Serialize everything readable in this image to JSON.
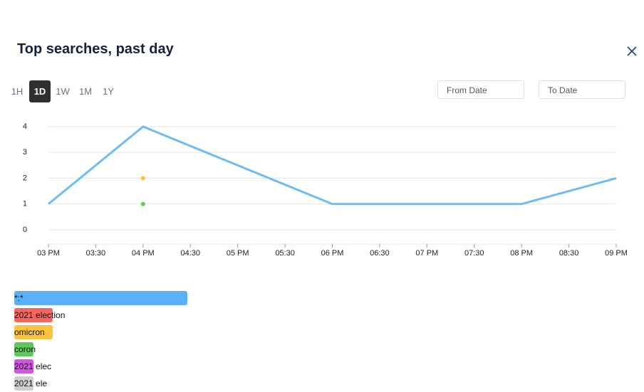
{
  "header": {
    "title": "Top searches, past day"
  },
  "range_buttons": {
    "options": [
      "1H",
      "1D",
      "1W",
      "1M",
      "1Y"
    ],
    "active": "1D"
  },
  "date_inputs": {
    "from": "From Date",
    "to": "To Date"
  },
  "chart_data": [
    {
      "type": "line",
      "xticks": [
        "03 PM",
        "03:30",
        "04 PM",
        "04:30",
        "05 PM",
        "05:30",
        "06 PM",
        "06:30",
        "07 PM",
        "07:30",
        "08 PM",
        "08:30",
        "09 PM"
      ],
      "ylim": [
        0,
        4
      ],
      "yticks": [
        0,
        1,
        2,
        3,
        4
      ],
      "grid": true,
      "series": [
        {
          "color": "#6bbcf7",
          "style": "line",
          "x": [
            "03 PM",
            "04 PM",
            "06 PM",
            "08 PM",
            "09 PM"
          ],
          "values": [
            1,
            4,
            1,
            1,
            2
          ]
        },
        {
          "color": "#f9c440",
          "style": "point",
          "x": [
            "04 PM"
          ],
          "values": [
            2
          ]
        },
        {
          "color": "#5fc95f",
          "style": "point",
          "x": [
            "04 PM"
          ],
          "values": [
            1
          ]
        }
      ]
    },
    {
      "type": "bar",
      "orientation": "horizontal",
      "categories": [
        "*:*",
        "2021 election",
        "omicron",
        "coron",
        "2021 elec",
        "2021 ele"
      ],
      "values": [
        9,
        2,
        2,
        1,
        1,
        1
      ],
      "colors": [
        "#59b0f6",
        "#f4665e",
        "#f9c440",
        "#5fc95f",
        "#d055e0",
        "#cfcfcf"
      ],
      "xlim": [
        0,
        9
      ]
    }
  ]
}
